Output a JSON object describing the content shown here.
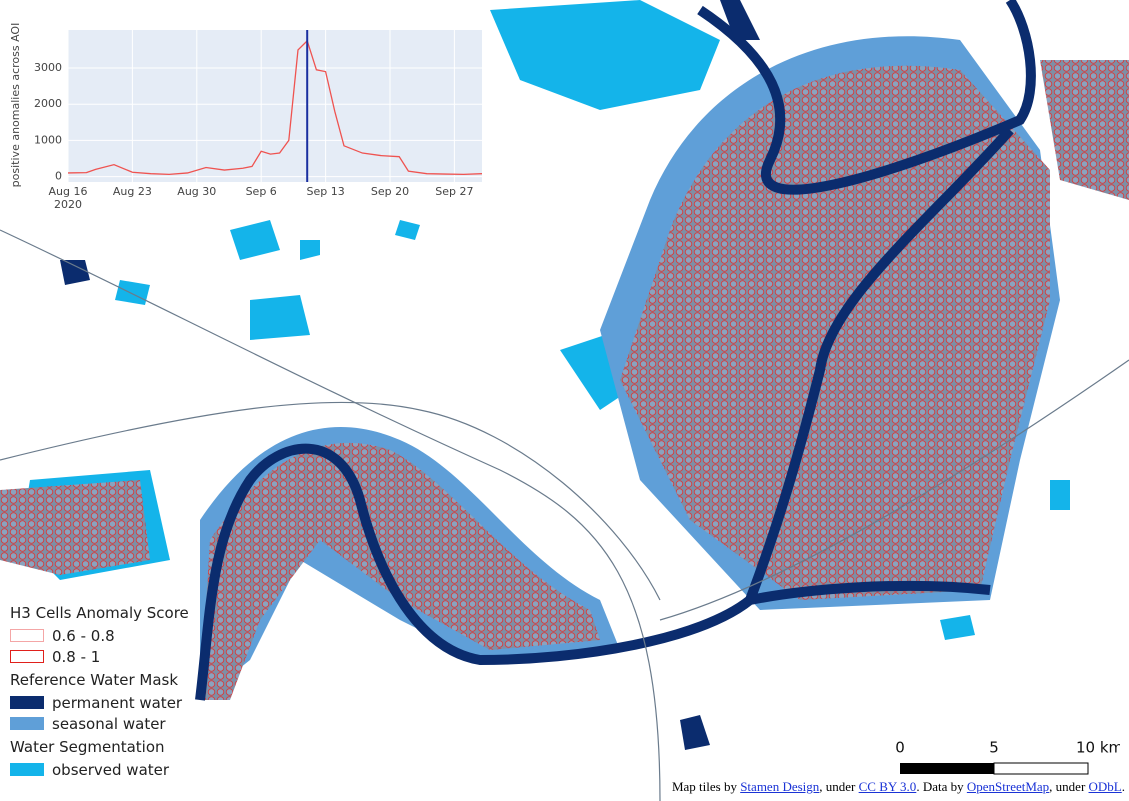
{
  "chart_data": {
    "type": "line",
    "y_label": "positive anomalies across AOI",
    "x": [
      "2020-08-16",
      "2020-08-18",
      "2020-08-19",
      "2020-08-21",
      "2020-08-23",
      "2020-08-25",
      "2020-08-27",
      "2020-08-29",
      "2020-08-31",
      "2020-09-02",
      "2020-09-04",
      "2020-09-05",
      "2020-09-06",
      "2020-09-07",
      "2020-09-08",
      "2020-09-09",
      "2020-09-10",
      "2020-09-11",
      "2020-09-12",
      "2020-09-13",
      "2020-09-14",
      "2020-09-15",
      "2020-09-17",
      "2020-09-19",
      "2020-09-21",
      "2020-09-22",
      "2020-09-24",
      "2020-09-26",
      "2020-09-28",
      "2020-09-30"
    ],
    "series": [
      {
        "name": "positive anomalies",
        "color": "#ef5350",
        "values": [
          100,
          110,
          200,
          330,
          120,
          80,
          60,
          100,
          250,
          180,
          230,
          280,
          700,
          620,
          650,
          1000,
          3500,
          3750,
          2950,
          2900,
          1800,
          850,
          650,
          580,
          550,
          150,
          80,
          70,
          60,
          80
        ]
      }
    ],
    "xlim": [
      "2020-08-16",
      "2020-09-30"
    ],
    "xticks": [
      {
        "value": "2020-08-16",
        "label": "Aug 16\n2020"
      },
      {
        "value": "2020-08-23",
        "label": "Aug 23"
      },
      {
        "value": "2020-08-30",
        "label": "Aug 30"
      },
      {
        "value": "2020-09-06",
        "label": "Sep 6"
      },
      {
        "value": "2020-09-13",
        "label": "Sep 13"
      },
      {
        "value": "2020-09-20",
        "label": "Sep 20"
      },
      {
        "value": "2020-09-27",
        "label": "Sep 27"
      }
    ],
    "ylim": [
      -150,
      4050
    ],
    "yticks": [
      0,
      1000,
      2000,
      3000
    ],
    "grid": true,
    "marker_x": "2020-09-11",
    "marker_color": "#1a2fa0"
  },
  "legend": {
    "groups": [
      {
        "title": "H3 Cells Anomaly Score",
        "items": [
          {
            "label": "0.6 - 0.8",
            "style": "outline",
            "color": "#f4a6a6"
          },
          {
            "label": "0.8 - 1",
            "style": "outline",
            "color": "#e0201b"
          }
        ]
      },
      {
        "title": "Reference Water Mask",
        "items": [
          {
            "label": "permanent water",
            "style": "fill",
            "color": "#0b2c6e"
          },
          {
            "label": "seasonal water",
            "style": "fill",
            "color": "#5f9fd8"
          }
        ]
      },
      {
        "title": "Water Segmentation",
        "items": [
          {
            "label": "observed water",
            "style": "fill",
            "color": "#14b4ea"
          }
        ]
      }
    ]
  },
  "scale_bar": {
    "labels": [
      "0",
      "5",
      "10 km"
    ]
  },
  "attribution": [
    "Map tiles by ",
    "Stamen Design",
    ", under ",
    "CC BY 3.0",
    ". Data by ",
    "OpenStreetMap",
    ", under ",
    "ODbL",
    "."
  ]
}
